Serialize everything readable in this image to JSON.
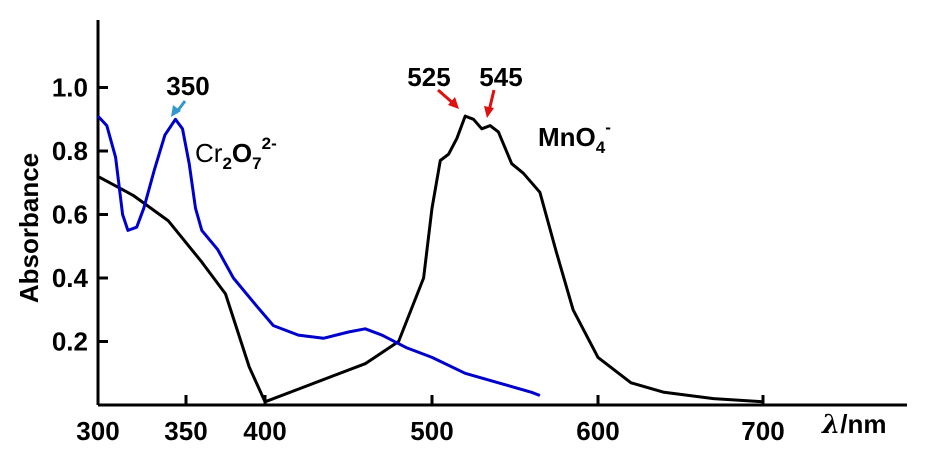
{
  "chart_data": {
    "type": "line",
    "title": "",
    "xlabel": "/nm",
    "xlabel_symbol": "λ",
    "ylabel": "Absorbance",
    "xlim": [
      300,
      720
    ],
    "ylim": [
      0,
      1.2
    ],
    "x_tick_labels": [
      "300",
      "350",
      "400",
      "500",
      "600",
      "700"
    ],
    "y_tick_labels": [
      "0.2",
      "0.4",
      "0.6",
      "0.8",
      "1.0"
    ],
    "grid": false,
    "series": [
      {
        "name": "MnO4-",
        "color": "#000000",
        "points": [
          [
            300,
            0.72
          ],
          [
            320,
            0.66
          ],
          [
            340,
            0.58
          ],
          [
            360,
            0.45
          ],
          [
            375,
            0.35
          ],
          [
            390,
            0.12
          ],
          [
            400,
            0.01
          ],
          [
            420,
            0.05
          ],
          [
            440,
            0.09
          ],
          [
            460,
            0.13
          ],
          [
            480,
            0.2
          ],
          [
            495,
            0.4
          ],
          [
            500,
            0.62
          ],
          [
            505,
            0.77
          ],
          [
            510,
            0.79
          ],
          [
            515,
            0.84
          ],
          [
            520,
            0.91
          ],
          [
            525,
            0.9
          ],
          [
            530,
            0.87
          ],
          [
            535,
            0.88
          ],
          [
            540,
            0.86
          ],
          [
            548,
            0.76
          ],
          [
            555,
            0.73
          ],
          [
            565,
            0.67
          ],
          [
            575,
            0.48
          ],
          [
            585,
            0.3
          ],
          [
            600,
            0.15
          ],
          [
            620,
            0.07
          ],
          [
            640,
            0.04
          ],
          [
            670,
            0.02
          ],
          [
            700,
            0.01
          ]
        ]
      },
      {
        "name": "Cr2O7 2-",
        "color": "#0000cc",
        "points": [
          [
            300,
            0.91
          ],
          [
            305,
            0.88
          ],
          [
            310,
            0.78
          ],
          [
            314,
            0.6
          ],
          [
            317,
            0.55
          ],
          [
            322,
            0.56
          ],
          [
            326,
            0.62
          ],
          [
            332,
            0.74
          ],
          [
            338,
            0.85
          ],
          [
            344,
            0.9
          ],
          [
            348,
            0.87
          ],
          [
            352,
            0.76
          ],
          [
            356,
            0.62
          ],
          [
            360,
            0.55
          ],
          [
            370,
            0.49
          ],
          [
            380,
            0.4
          ],
          [
            395,
            0.31
          ],
          [
            405,
            0.25
          ],
          [
            420,
            0.22
          ],
          [
            435,
            0.21
          ],
          [
            450,
            0.23
          ],
          [
            460,
            0.24
          ],
          [
            470,
            0.22
          ],
          [
            485,
            0.18
          ],
          [
            500,
            0.15
          ],
          [
            520,
            0.1
          ],
          [
            540,
            0.07
          ],
          [
            560,
            0.04
          ],
          [
            565,
            0.03
          ]
        ]
      }
    ],
    "annotations": [
      {
        "id": "cr-peak",
        "text": "350",
        "color": "#3399cc"
      },
      {
        "id": "mn-peak-1",
        "text": "525",
        "color": "#e01010"
      },
      {
        "id": "mn-peak-2",
        "text": "545",
        "color": "#e01010"
      }
    ],
    "series_labels": {
      "cr": {
        "base": "Cr",
        "sub1": "2",
        "mid": "O",
        "sub2": "7",
        "sup": "2-"
      },
      "mn": {
        "base": "MnO",
        "sub": "4",
        "sup": "-"
      }
    }
  }
}
